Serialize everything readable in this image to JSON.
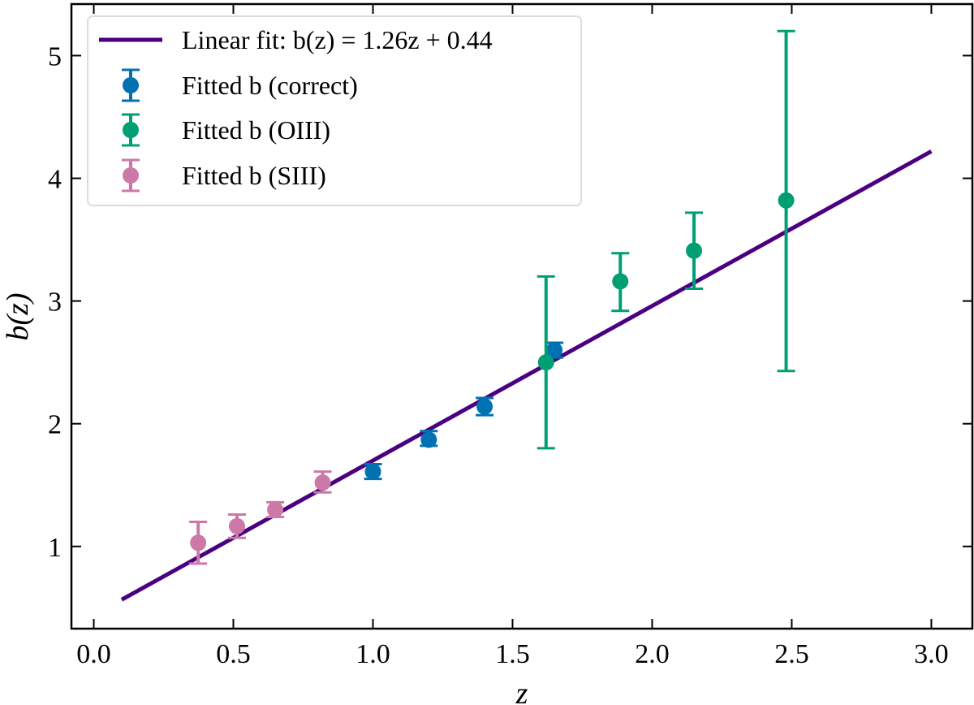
{
  "chart_data": {
    "type": "scatter",
    "title": "",
    "xlabel": "z",
    "ylabel": "b(z)",
    "xlim": [
      -0.08,
      3.147
    ],
    "ylim": [
      0.33,
      5.42
    ],
    "xticks": [
      "0.0",
      "0.5",
      "1.0",
      "1.5",
      "2.0",
      "2.5",
      "3.0"
    ],
    "xtick_values": [
      0,
      0.5,
      1,
      1.5,
      2,
      2.5,
      3
    ],
    "yticks": [
      "1",
      "2",
      "3",
      "4",
      "5"
    ],
    "ytick_values": [
      1,
      2,
      3,
      4,
      5
    ],
    "grid": false,
    "legend_placement": "top-left",
    "fit": {
      "name": "Linear fit: b(z) = 1.26z + 0.44",
      "slope": 1.26,
      "intercept": 0.44,
      "x_range": [
        0.1,
        3.0
      ],
      "color": "#4b0082"
    },
    "series": [
      {
        "name": "Fitted b (correct)",
        "color": "#0072b2",
        "points": [
          {
            "x": 1.0,
            "y": 1.61,
            "lo": 1.55,
            "hi": 1.67
          },
          {
            "x": 1.2,
            "y": 1.87,
            "lo": 1.82,
            "hi": 1.94
          },
          {
            "x": 1.4,
            "y": 2.14,
            "lo": 2.07,
            "hi": 2.21
          },
          {
            "x": 1.65,
            "y": 2.6,
            "lo": 2.54,
            "hi": 2.66
          }
        ]
      },
      {
        "name": "Fitted b (OIII)",
        "color": "#009e73",
        "points": [
          {
            "x": 1.62,
            "y": 2.5,
            "lo": 1.8,
            "hi": 3.2
          },
          {
            "x": 1.886,
            "y": 3.16,
            "lo": 2.92,
            "hi": 3.39
          },
          {
            "x": 2.15,
            "y": 3.41,
            "lo": 3.1,
            "hi": 3.72
          },
          {
            "x": 2.48,
            "y": 3.82,
            "lo": 2.43,
            "hi": 5.2
          }
        ]
      },
      {
        "name": "Fitted b (SIII)",
        "color": "#cc79a7",
        "points": [
          {
            "x": 0.374,
            "y": 1.03,
            "lo": 0.86,
            "hi": 1.2
          },
          {
            "x": 0.513,
            "y": 1.165,
            "lo": 1.07,
            "hi": 1.26
          },
          {
            "x": 0.65,
            "y": 1.3,
            "lo": 1.24,
            "hi": 1.36
          },
          {
            "x": 0.82,
            "y": 1.52,
            "lo": 1.44,
            "hi": 1.61
          }
        ]
      }
    ]
  },
  "legend": {
    "fit_label": "Linear fit: b(z) = 1.26z + 0.44",
    "correct_label": "Fitted b (correct)",
    "oiii_label": "Fitted b (OIII)",
    "siii_label": "Fitted b (SIII)"
  }
}
